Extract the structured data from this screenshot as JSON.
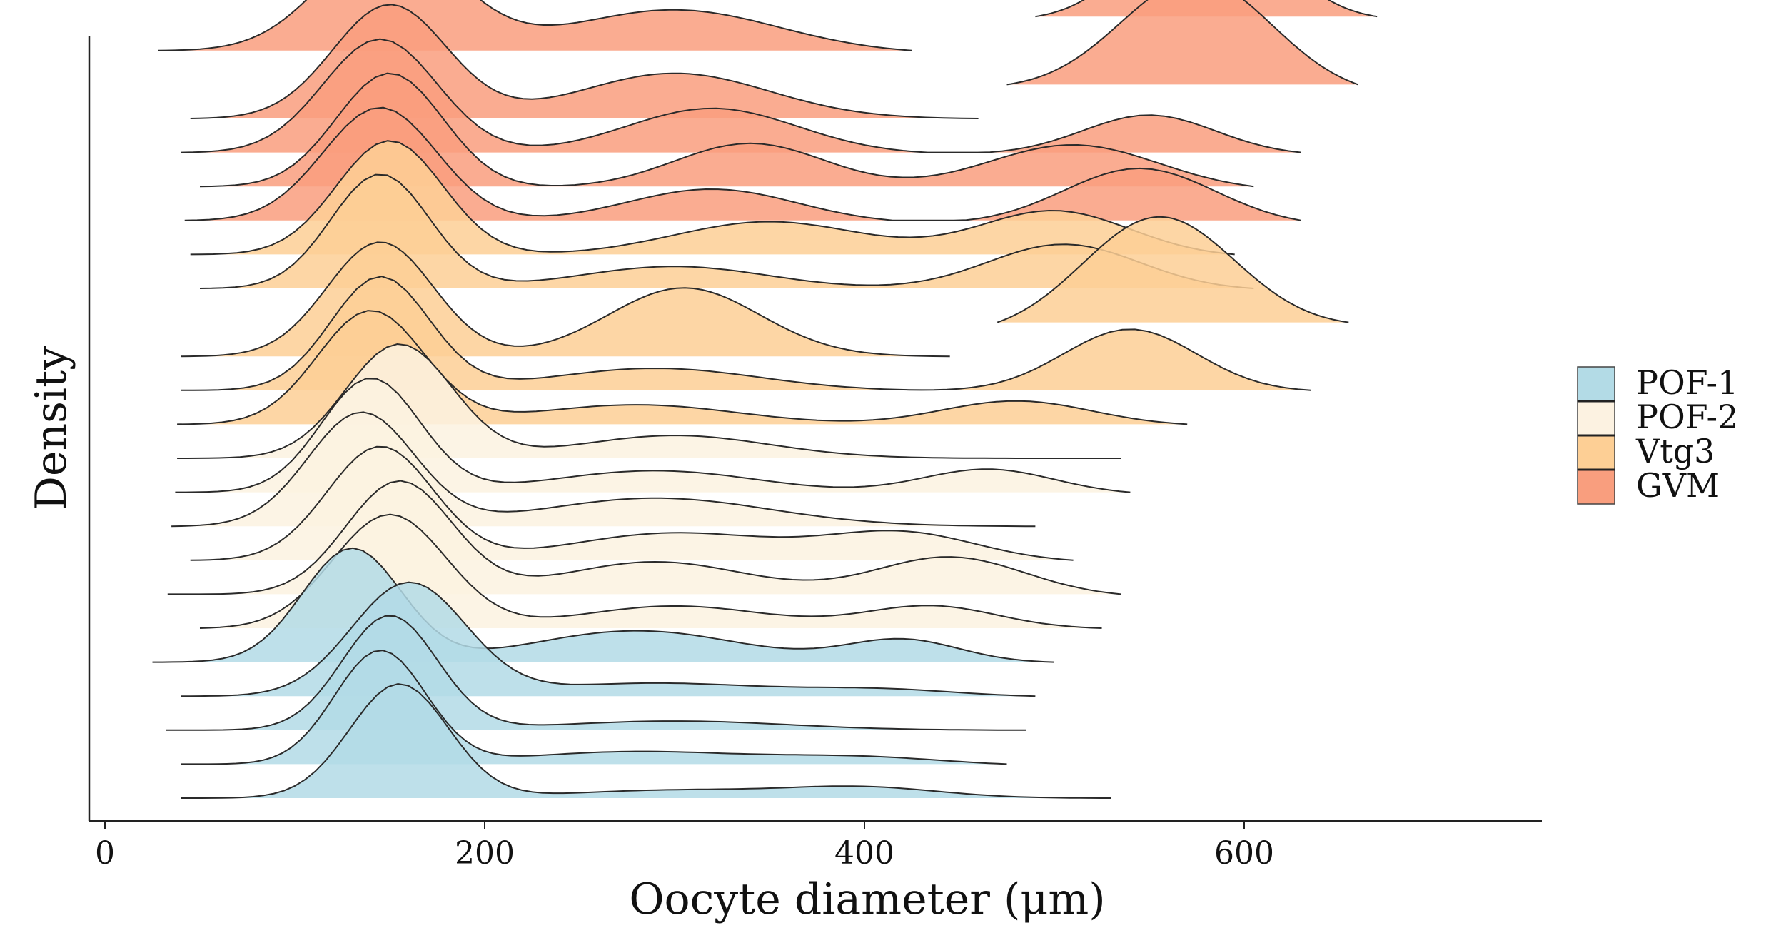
{
  "chart_data": {
    "type": "ridgeline",
    "title": "",
    "xlabel": "Oocyte diameter (μm)",
    "ylabel": "Density",
    "xlim": [
      -20,
      755
    ],
    "xticks": [
      0,
      200,
      400,
      600
    ],
    "xtick_labels": [
      "0",
      "200",
      "400",
      "600"
    ],
    "legend": {
      "position": "right",
      "entries": [
        {
          "label": "POF-1",
          "color": "#b3dbe6"
        },
        {
          "label": "POF-2",
          "color": "#fcf2e1"
        },
        {
          "label": "Vtg3",
          "color": "#fdcf95"
        },
        {
          "label": "GVM",
          "color": "#f99e7e"
        }
      ]
    },
    "group_colors": {
      "POF-1": "#b3dbe6",
      "POF-2": "#fcf2e1",
      "Vtg3": "#fdcf95",
      "GVM": "#f99e7e"
    },
    "ridges": [
      {
        "group": "POF-1",
        "min": 40,
        "max": 530,
        "peaks": [
          [
            155,
            26,
            1.0
          ],
          [
            300,
            55,
            0.07
          ],
          [
            400,
            40,
            0.09
          ]
        ]
      },
      {
        "group": "POF-1",
        "min": 40,
        "max": 475,
        "peaks": [
          [
            145,
            24,
            1.0
          ],
          [
            280,
            60,
            0.12
          ],
          [
            400,
            45,
            0.07
          ]
        ]
      },
      {
        "group": "POF-1",
        "min": 32,
        "max": 485,
        "peaks": [
          [
            150,
            25,
            1.0
          ],
          [
            300,
            60,
            0.08
          ]
        ]
      },
      {
        "group": "POF-1",
        "min": 40,
        "max": 490,
        "peaks": [
          [
            160,
            30,
            1.0
          ],
          [
            290,
            60,
            0.12
          ],
          [
            410,
            40,
            0.06
          ]
        ]
      },
      {
        "group": "POF-1",
        "min": 25,
        "max": 500,
        "peaks": [
          [
            130,
            26,
            1.0
          ],
          [
            280,
            55,
            0.28
          ],
          [
            420,
            30,
            0.2
          ]
        ]
      },
      {
        "group": "POF-2",
        "min": 50,
        "max": 525,
        "peaks": [
          [
            150,
            30,
            1.0
          ],
          [
            300,
            50,
            0.2
          ],
          [
            435,
            35,
            0.2
          ]
        ]
      },
      {
        "group": "POF-2",
        "min": 33,
        "max": 535,
        "peaks": [
          [
            155,
            28,
            1.0
          ],
          [
            290,
            50,
            0.3
          ],
          [
            445,
            40,
            0.35
          ]
        ]
      },
      {
        "group": "POF-2",
        "min": 45,
        "max": 510,
        "peaks": [
          [
            145,
            28,
            1.0
          ],
          [
            300,
            55,
            0.25
          ],
          [
            420,
            40,
            0.25
          ]
        ]
      },
      {
        "group": "POF-2",
        "min": 35,
        "max": 490,
        "peaks": [
          [
            135,
            28,
            1.0
          ],
          [
            290,
            60,
            0.25
          ]
        ]
      },
      {
        "group": "POF-2",
        "min": 37,
        "max": 540,
        "peaks": [
          [
            140,
            26,
            1.0
          ],
          [
            290,
            55,
            0.2
          ],
          [
            465,
            35,
            0.22
          ]
        ]
      },
      {
        "group": "POF-2",
        "min": 38,
        "max": 535,
        "peaks": [
          [
            155,
            28,
            1.0
          ],
          [
            300,
            50,
            0.2
          ]
        ]
      },
      {
        "group": "Vtg3",
        "min": 38,
        "max": 570,
        "peaks": [
          [
            140,
            28,
            1.0
          ],
          [
            280,
            55,
            0.18
          ],
          [
            480,
            40,
            0.22
          ]
        ]
      },
      {
        "group": "Vtg3",
        "min": 40,
        "max": 635,
        "peaks": [
          [
            145,
            26,
            1.0
          ],
          [
            290,
            55,
            0.2
          ],
          [
            540,
            35,
            0.55
          ]
        ]
      },
      {
        "group": "Vtg3",
        "min": 40,
        "max": 445,
        "peaks": [
          [
            145,
            28,
            1.0
          ],
          [
            305,
            40,
            0.6
          ]
        ]
      },
      {
        "group": "Vtg3",
        "min": 470,
        "max": 655,
        "peaks": [
          [
            555,
            40,
            0.6
          ]
        ]
      },
      {
        "group": "Vtg3",
        "min": 50,
        "max": 605,
        "peaks": [
          [
            145,
            26,
            1.0
          ],
          [
            300,
            50,
            0.2
          ],
          [
            505,
            40,
            0.4
          ]
        ]
      },
      {
        "group": "Vtg3",
        "min": 45,
        "max": 595,
        "peaks": [
          [
            150,
            28,
            1.0
          ],
          [
            350,
            50,
            0.3
          ],
          [
            500,
            40,
            0.4
          ]
        ]
      },
      {
        "group": "GVM",
        "min": 42,
        "max": 630,
        "peaks": [
          [
            145,
            30,
            1.0
          ],
          [
            320,
            45,
            0.3
          ],
          [
            545,
            40,
            0.5
          ]
        ]
      },
      {
        "group": "GVM",
        "min": 50,
        "max": 605,
        "peaks": [
          [
            150,
            28,
            1.0
          ],
          [
            340,
            40,
            0.4
          ],
          [
            510,
            45,
            0.4
          ]
        ]
      },
      {
        "group": "GVM",
        "min": 40,
        "max": 630,
        "peaks": [
          [
            145,
            30,
            1.0
          ],
          [
            320,
            45,
            0.4
          ],
          [
            550,
            35,
            0.35
          ]
        ]
      },
      {
        "group": "GVM",
        "min": 45,
        "max": 460,
        "peaks": [
          [
            150,
            30,
            1.0
          ],
          [
            300,
            50,
            0.4
          ]
        ]
      },
      {
        "group": "GVM",
        "min": 475,
        "max": 660,
        "peaks": [
          [
            575,
            40,
            0.3
          ]
        ]
      },
      {
        "group": "GVM",
        "min": 28,
        "max": 425,
        "peaks": [
          [
            150,
            35,
            1.0
          ],
          [
            300,
            55,
            0.38
          ]
        ]
      },
      {
        "group": "GVM",
        "min": 490,
        "max": 670,
        "peaks": [
          [
            580,
            35,
            0.28
          ]
        ]
      }
    ]
  }
}
